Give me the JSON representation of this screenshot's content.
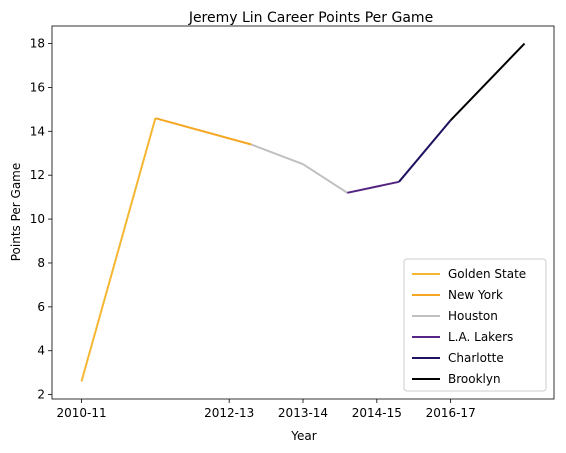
{
  "chart_data": {
    "type": "line",
    "title": "Jeremy Lin Career Points Per Game",
    "xlabel": "Year",
    "ylabel": "Points Per Game",
    "x_tick_labels": [
      "2010-11",
      "2012-13",
      "2013-14",
      "2014-15",
      "2016-17"
    ],
    "x_tick_positions": [
      0,
      2,
      3,
      4,
      5
    ],
    "y_ticks": [
      2,
      4,
      6,
      8,
      10,
      12,
      14,
      16,
      18
    ],
    "xlim": [
      -0.4,
      6.4
    ],
    "ylim": [
      1.8,
      18.8
    ],
    "grid": false,
    "legend_position": "bottom-right",
    "series": [
      {
        "name": "Golden State",
        "color": "#f5b731",
        "points": [
          [
            0,
            2.6
          ],
          [
            1.0,
            14.6
          ]
        ]
      },
      {
        "name": "New York",
        "color": "#f5a623",
        "points": [
          [
            1.0,
            14.6
          ],
          [
            2.3,
            13.4
          ]
        ]
      },
      {
        "name": "Houston",
        "color": "#c0c0c0",
        "points": [
          [
            2.3,
            13.4
          ],
          [
            3.0,
            12.5
          ],
          [
            3.6,
            11.2
          ]
        ]
      },
      {
        "name": "L.A. Lakers",
        "color": "#552583",
        "points": [
          [
            3.6,
            11.2
          ],
          [
            4.3,
            11.7
          ]
        ]
      },
      {
        "name": "Charlotte",
        "color": "#1d1160",
        "points": [
          [
            4.3,
            11.7
          ],
          [
            5.0,
            14.5
          ]
        ]
      },
      {
        "name": "Brooklyn",
        "color": "#000000",
        "points": [
          [
            5.0,
            14.5
          ],
          [
            6.0,
            18.0
          ]
        ]
      }
    ]
  }
}
